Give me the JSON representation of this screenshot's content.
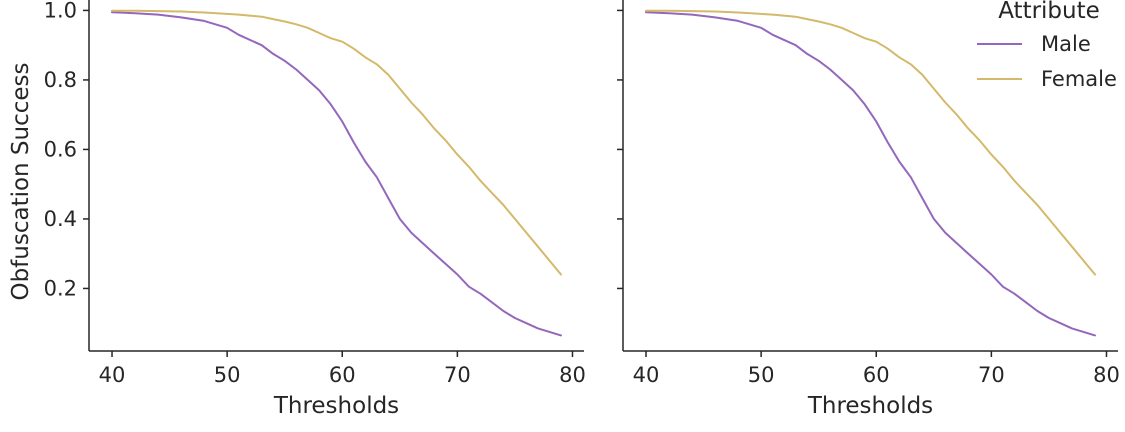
{
  "chart_data": {
    "type": "line",
    "panels": [
      {
        "xlabel": "Thresholds",
        "ylabel": "Obfuscation Success",
        "show_y_labels": true,
        "show_legend": false
      },
      {
        "xlabel": "Thresholds",
        "ylabel": "",
        "show_y_labels": false,
        "show_legend": true
      }
    ],
    "x_ticks": [
      40,
      50,
      60,
      70,
      80
    ],
    "y_ticks": [
      0.2,
      0.4,
      0.6,
      0.8,
      1.0
    ],
    "y_tick_labels": [
      "0.2",
      "0.4",
      "0.6",
      "0.8",
      "1.0"
    ],
    "xlim": [
      38,
      81
    ],
    "ylim": [
      0.02,
      1.03
    ],
    "legend": {
      "title": "Attribute",
      "placement": "top-right"
    },
    "x": [
      40,
      42,
      44,
      46,
      48,
      50,
      51,
      53,
      54,
      55,
      56,
      57,
      58,
      59,
      60,
      61,
      62,
      63,
      64,
      65,
      66,
      67,
      68,
      69,
      70,
      71,
      72,
      73,
      74,
      75,
      76,
      77,
      78,
      79
    ],
    "series": [
      {
        "name": "Male",
        "color": "#9467bd",
        "values": [
          0.995,
          0.992,
          0.988,
          0.98,
          0.97,
          0.95,
          0.93,
          0.9,
          0.875,
          0.855,
          0.83,
          0.8,
          0.77,
          0.73,
          0.68,
          0.62,
          0.565,
          0.52,
          0.46,
          0.4,
          0.36,
          0.33,
          0.3,
          0.27,
          0.24,
          0.205,
          0.185,
          0.16,
          0.135,
          0.115,
          0.1,
          0.085,
          0.075,
          0.065
        ]
      },
      {
        "name": "Female",
        "color": "#d4b96a",
        "values": [
          0.999,
          0.999,
          0.998,
          0.997,
          0.994,
          0.99,
          0.988,
          0.982,
          0.975,
          0.968,
          0.96,
          0.95,
          0.935,
          0.92,
          0.91,
          0.89,
          0.865,
          0.845,
          0.815,
          0.775,
          0.735,
          0.7,
          0.66,
          0.625,
          0.585,
          0.55,
          0.51,
          0.475,
          0.44,
          0.4,
          0.36,
          0.32,
          0.28,
          0.24
        ]
      }
    ]
  }
}
